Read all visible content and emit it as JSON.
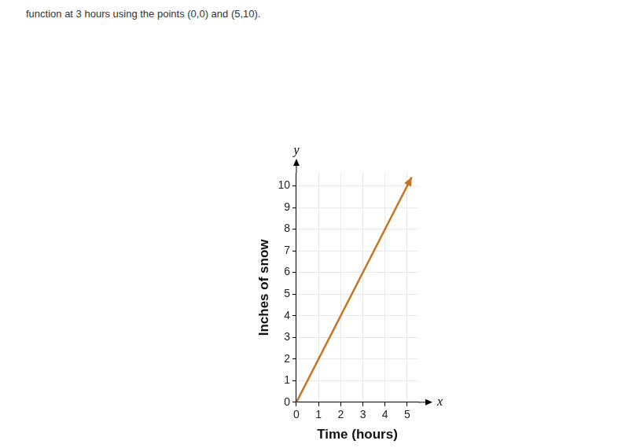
{
  "chart_data": {
    "type": "line",
    "caption": "function at 3 hours using the points (0,0) and (5,10).",
    "x_label": "Time (hours)",
    "y_label": "Inches of snow",
    "x_axis_name": "x",
    "y_axis_name": "y",
    "x": [
      0,
      5.2
    ],
    "values": [
      0,
      10.4
    ],
    "color": "#c8741f",
    "xlim": [
      0,
      5.5
    ],
    "xticks": [
      0,
      1,
      2,
      3,
      4,
      5
    ],
    "ylim": [
      0,
      10.6
    ],
    "yticks": [
      0,
      1,
      2,
      3,
      4,
      5,
      6,
      7,
      8,
      9,
      10
    ],
    "grid": true,
    "marker": "none",
    "line_style": "arrow"
  }
}
